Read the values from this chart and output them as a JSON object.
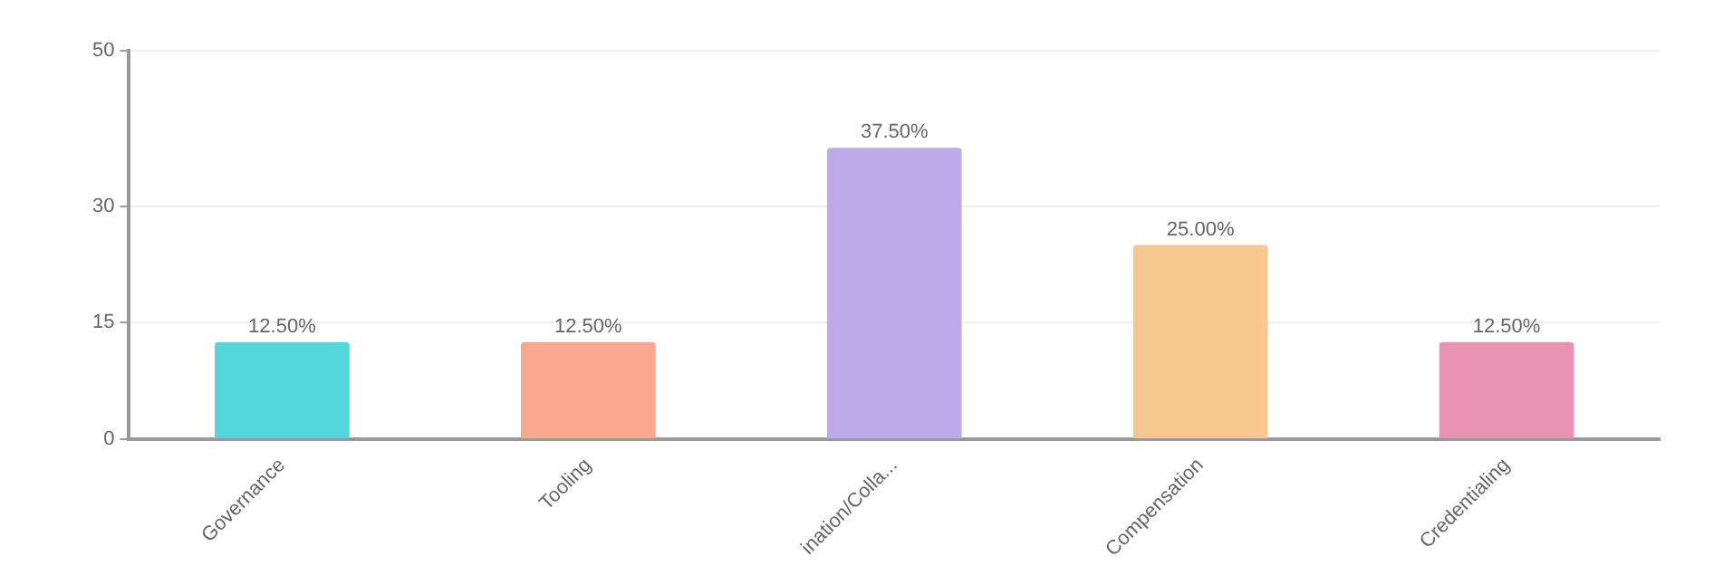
{
  "chart_data": {
    "type": "bar",
    "categories": [
      "Governance",
      "Tooling",
      "ination/Colla...",
      "Compensation",
      "Credentialing"
    ],
    "values": [
      12.5,
      12.5,
      37.5,
      25,
      12.5
    ],
    "colors": [
      "#53d5dc",
      "#f7a88f",
      "#bfaae9",
      "#f6c78e",
      "#e891b1"
    ],
    "value_labels": [
      "12.50%",
      "12.50%",
      "37.50%",
      "25.00%",
      "12.50%"
    ],
    "ylim": [
      0,
      50
    ],
    "yticks": [
      0,
      15,
      30,
      50
    ],
    "grid": "y",
    "legend": false
  }
}
